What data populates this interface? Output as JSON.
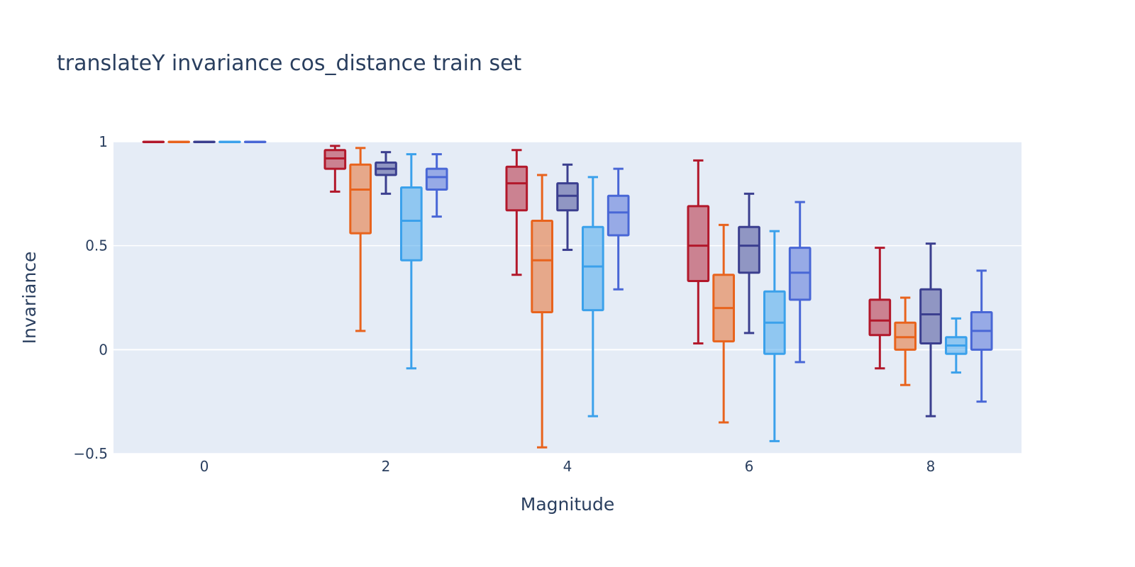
{
  "chart_data": {
    "type": "box",
    "title": "translateY invariance cos_distance train set",
    "xlabel": "Magnitude",
    "ylabel": "Invariance",
    "xlim": [
      -1,
      9
    ],
    "ylim": [
      -0.5,
      1
    ],
    "xticks": [
      0,
      2,
      4,
      6,
      8
    ],
    "yticks": [
      -0.5,
      0,
      0.5,
      1
    ],
    "ytick_labels": [
      "−0.5",
      "0",
      "0.5",
      "1"
    ],
    "grid": true,
    "background_color": "#E5ECF6",
    "categories": [
      0,
      2,
      4,
      6,
      8
    ],
    "series": [
      {
        "color": "#B2182B",
        "fill": "rgba(178,24,43,0.5)",
        "boxes": [
          {
            "x": 0,
            "min": 1.0,
            "q1": 1.0,
            "median": 1.0,
            "q3": 1.0,
            "max": 1.0
          },
          {
            "x": 2,
            "min": 0.76,
            "q1": 0.87,
            "median": 0.92,
            "q3": 0.96,
            "max": 0.98
          },
          {
            "x": 4,
            "min": 0.36,
            "q1": 0.67,
            "median": 0.8,
            "q3": 0.88,
            "max": 0.96
          },
          {
            "x": 6,
            "min": 0.03,
            "q1": 0.33,
            "median": 0.5,
            "q3": 0.69,
            "max": 0.91
          },
          {
            "x": 8,
            "min": -0.09,
            "q1": 0.07,
            "median": 0.14,
            "q3": 0.24,
            "max": 0.49
          }
        ]
      },
      {
        "color": "#E8631D",
        "fill": "rgba(232,99,29,0.5)",
        "boxes": [
          {
            "x": 0,
            "min": 1.0,
            "q1": 1.0,
            "median": 1.0,
            "q3": 1.0,
            "max": 1.0
          },
          {
            "x": 2,
            "min": 0.09,
            "q1": 0.56,
            "median": 0.77,
            "q3": 0.89,
            "max": 0.97
          },
          {
            "x": 4,
            "min": -0.47,
            "q1": 0.18,
            "median": 0.43,
            "q3": 0.62,
            "max": 0.84
          },
          {
            "x": 6,
            "min": -0.35,
            "q1": 0.04,
            "median": 0.2,
            "q3": 0.36,
            "max": 0.6
          },
          {
            "x": 8,
            "min": -0.17,
            "q1": 0.0,
            "median": 0.06,
            "q3": 0.13,
            "max": 0.25
          }
        ]
      },
      {
        "color": "#3B3F8F",
        "fill": "rgba(59,63,143,0.5)",
        "boxes": [
          {
            "x": 0,
            "min": 1.0,
            "q1": 1.0,
            "median": 1.0,
            "q3": 1.0,
            "max": 1.0
          },
          {
            "x": 2,
            "min": 0.75,
            "q1": 0.84,
            "median": 0.87,
            "q3": 0.9,
            "max": 0.95
          },
          {
            "x": 4,
            "min": 0.48,
            "q1": 0.67,
            "median": 0.74,
            "q3": 0.8,
            "max": 0.89
          },
          {
            "x": 6,
            "min": 0.08,
            "q1": 0.37,
            "median": 0.5,
            "q3": 0.59,
            "max": 0.75
          },
          {
            "x": 8,
            "min": -0.32,
            "q1": 0.03,
            "median": 0.17,
            "q3": 0.29,
            "max": 0.51
          }
        ]
      },
      {
        "color": "#3BA1EB",
        "fill": "rgba(59,161,235,0.5)",
        "boxes": [
          {
            "x": 0,
            "min": 1.0,
            "q1": 1.0,
            "median": 1.0,
            "q3": 1.0,
            "max": 1.0
          },
          {
            "x": 2,
            "min": -0.09,
            "q1": 0.43,
            "median": 0.62,
            "q3": 0.78,
            "max": 0.94
          },
          {
            "x": 4,
            "min": -0.32,
            "q1": 0.19,
            "median": 0.4,
            "q3": 0.59,
            "max": 0.83
          },
          {
            "x": 6,
            "min": -0.44,
            "q1": -0.02,
            "median": 0.13,
            "q3": 0.28,
            "max": 0.57
          },
          {
            "x": 8,
            "min": -0.11,
            "q1": -0.02,
            "median": 0.02,
            "q3": 0.06,
            "max": 0.15
          }
        ]
      },
      {
        "color": "#4967D6",
        "fill": "rgba(73,103,214,0.5)",
        "boxes": [
          {
            "x": 0,
            "min": 1.0,
            "q1": 1.0,
            "median": 1.0,
            "q3": 1.0,
            "max": 1.0
          },
          {
            "x": 2,
            "min": 0.64,
            "q1": 0.77,
            "median": 0.83,
            "q3": 0.87,
            "max": 0.94
          },
          {
            "x": 4,
            "min": 0.29,
            "q1": 0.55,
            "median": 0.66,
            "q3": 0.74,
            "max": 0.87
          },
          {
            "x": 6,
            "min": -0.06,
            "q1": 0.24,
            "median": 0.37,
            "q3": 0.49,
            "max": 0.71
          },
          {
            "x": 8,
            "min": -0.25,
            "q1": 0.0,
            "median": 0.09,
            "q3": 0.18,
            "max": 0.38
          }
        ]
      }
    ]
  }
}
